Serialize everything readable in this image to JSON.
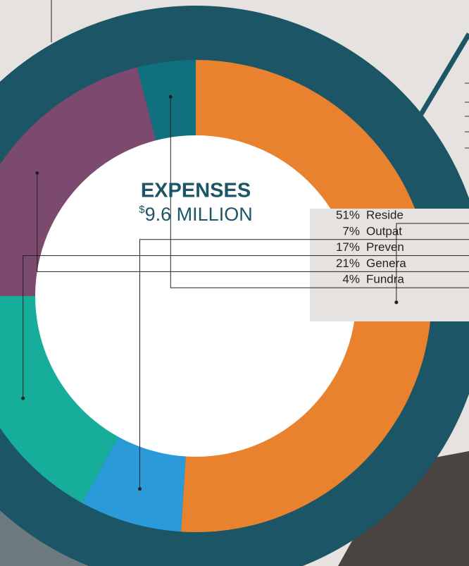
{
  "chart_data": {
    "type": "pie",
    "title": "EXPENSES",
    "currency": "$",
    "total": "9.6 MILLION",
    "categories": [
      "Reside",
      "Outpat",
      "Preven",
      "Genera",
      "Fundra"
    ],
    "values": [
      51,
      7,
      17,
      21,
      4
    ],
    "value_labels": [
      "51%",
      "7%",
      "17%",
      "21%",
      "4%"
    ],
    "colors": [
      "#e8822e",
      "#2a9ad8",
      "#16ad9b",
      "#7c4a6e",
      "#10707e"
    ]
  }
}
